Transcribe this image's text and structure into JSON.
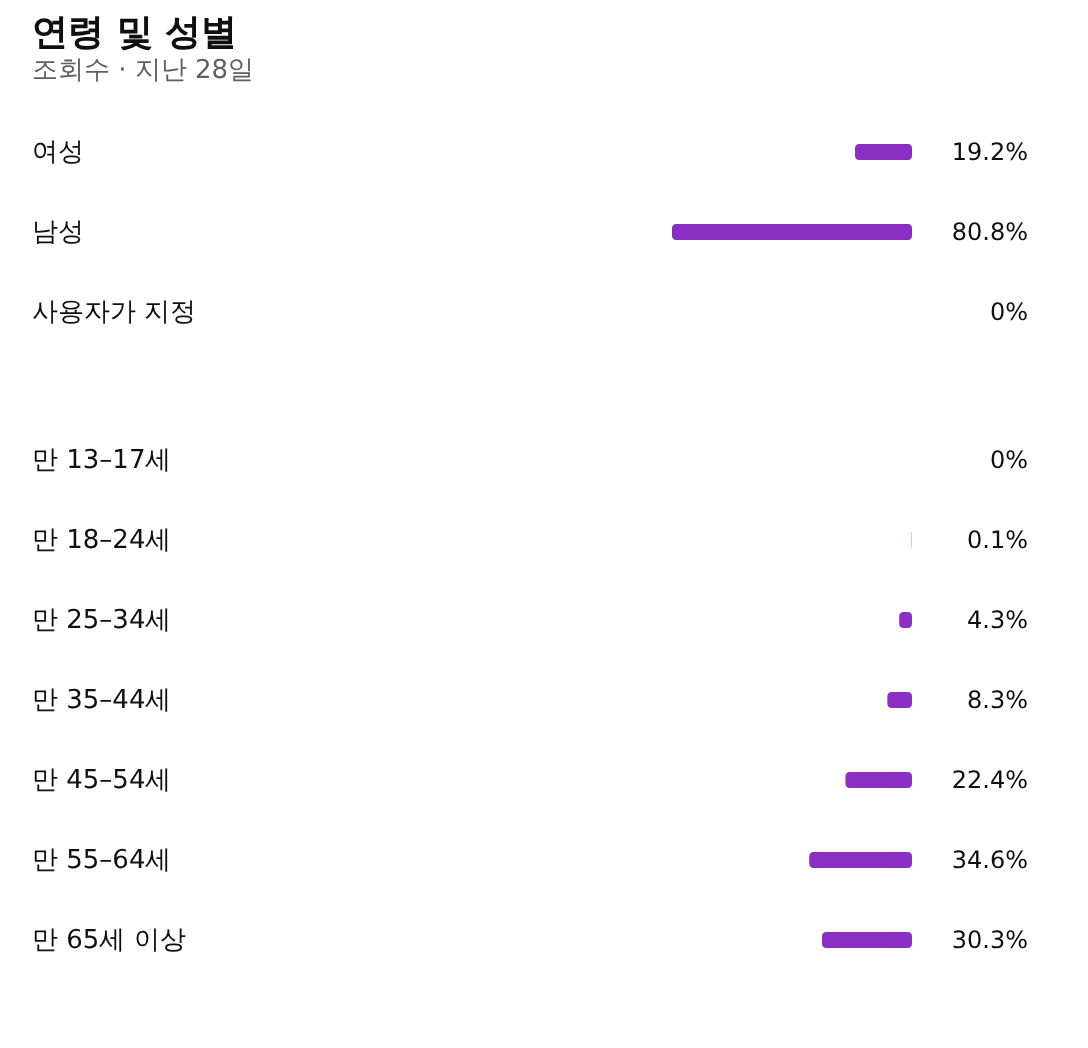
{
  "chart_data": [
    {
      "type": "bar",
      "orientation": "horizontal",
      "title": "연령 및 성별",
      "subtitle": "조회수 · 지난 28일",
      "categories": [
        "여성",
        "남성",
        "사용자가 지정"
      ],
      "values": [
        19.2,
        80.8,
        0
      ],
      "value_labels": [
        "19.2%",
        "80.8%",
        "0%"
      ],
      "color": "#8b2fc4"
    },
    {
      "type": "bar",
      "orientation": "horizontal",
      "categories": [
        "만 13–17세",
        "만 18–24세",
        "만 25–34세",
        "만 35–44세",
        "만 45–54세",
        "만 55–64세",
        "만 65세 이상"
      ],
      "values": [
        null,
        0.1,
        4.3,
        8.3,
        22.4,
        34.6,
        30.3
      ],
      "value_labels": [
        "0%",
        "0.1%",
        "4.3%",
        "8.3%",
        "22.4%",
        "34.6%",
        "30.3%"
      ],
      "color": "#8b2fc4"
    }
  ]
}
